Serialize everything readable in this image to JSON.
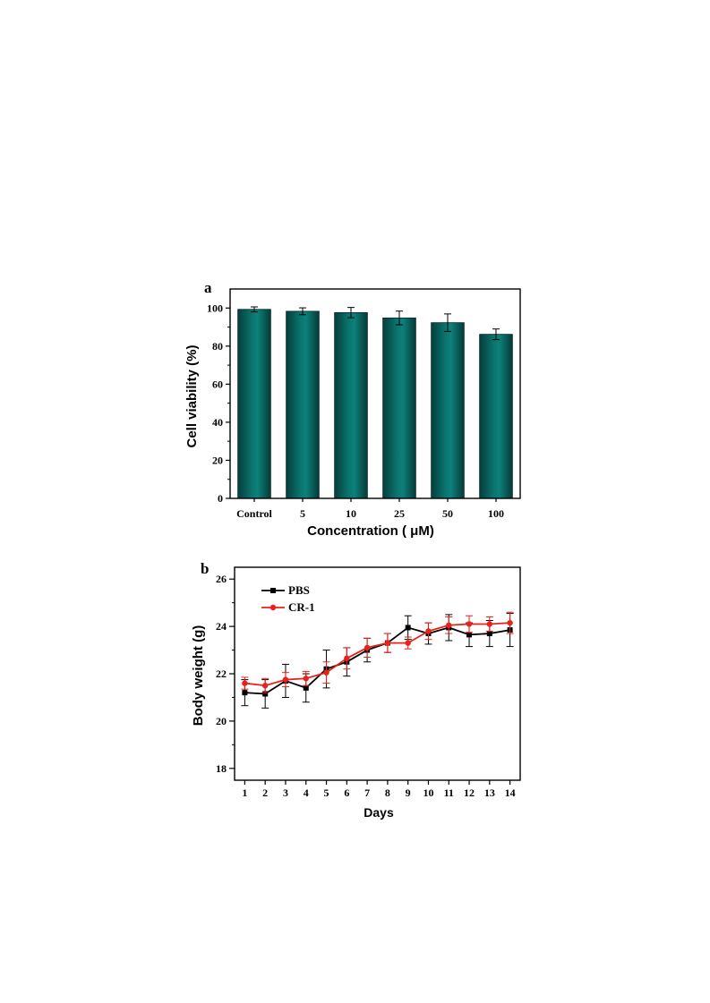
{
  "chart_data": [
    {
      "type": "bar",
      "panel_label": "a",
      "title": "",
      "xlabel": "Concentration ( μM)",
      "ylabel": "Cell viability (%)",
      "categories": [
        "Control",
        "5",
        "10",
        "25",
        "50",
        "100"
      ],
      "values": [
        99.3,
        98.3,
        97.6,
        94.8,
        92.3,
        86.2
      ],
      "errors": [
        1.3,
        1.8,
        2.7,
        3.6,
        4.6,
        2.8
      ],
      "ylim": [
        0,
        110
      ],
      "yticks": [
        0,
        20,
        40,
        60,
        80,
        100
      ],
      "bar_color": "#0b6e69",
      "grid": false
    },
    {
      "type": "line",
      "panel_label": "b",
      "title": "",
      "xlabel": "Days",
      "ylabel": "Body weight (g)",
      "x": [
        1,
        2,
        3,
        4,
        5,
        6,
        7,
        8,
        9,
        10,
        11,
        12,
        13,
        14
      ],
      "xlim": [
        0.5,
        14.5
      ],
      "ylim": [
        17.5,
        26.5
      ],
      "yticks": [
        18,
        20,
        22,
        24,
        26
      ],
      "legend_position": "top-left",
      "grid": false,
      "series": [
        {
          "name": "PBS",
          "color": "#000000",
          "marker": "square",
          "values": [
            21.2,
            21.15,
            21.7,
            21.4,
            22.2,
            22.5,
            23.0,
            23.3,
            23.95,
            23.7,
            23.95,
            23.65,
            23.7,
            23.85
          ],
          "errors": [
            0.55,
            0.6,
            0.7,
            0.6,
            0.8,
            0.6,
            0.5,
            0.4,
            0.5,
            0.45,
            0.55,
            0.5,
            0.55,
            0.7
          ]
        },
        {
          "name": "CR-1",
          "color": "#e8221b",
          "marker": "circle",
          "values": [
            21.6,
            21.5,
            21.75,
            21.8,
            22.05,
            22.65,
            23.1,
            23.3,
            23.3,
            23.8,
            24.05,
            24.1,
            24.1,
            24.15
          ],
          "errors": [
            0.25,
            0.3,
            0.3,
            0.3,
            0.45,
            0.45,
            0.4,
            0.4,
            0.25,
            0.35,
            0.35,
            0.35,
            0.3,
            0.45
          ]
        }
      ]
    }
  ]
}
